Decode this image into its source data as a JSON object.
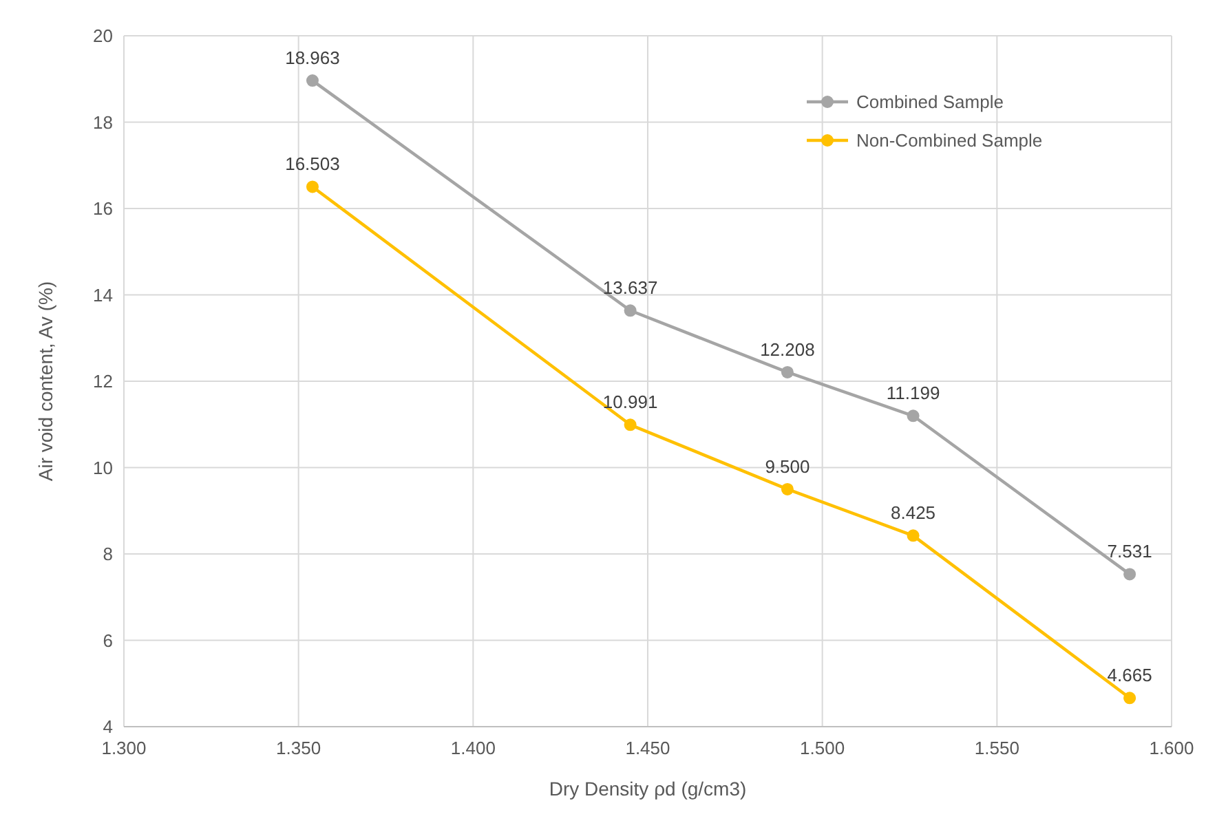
{
  "chart_data": {
    "type": "line",
    "xlabel": "Dry Density ρd (g/cm3)",
    "ylabel": "Air void content, Av (%)",
    "x": [
      1.354,
      1.445,
      1.49,
      1.526,
      1.588
    ],
    "series": [
      {
        "name": "Combined Sample",
        "color": "#a5a5a5",
        "values": [
          18.963,
          13.637,
          12.208,
          11.199,
          7.531
        ],
        "value_labels": [
          "18.963",
          "13.637",
          "12.208",
          "11.199",
          "7.531"
        ]
      },
      {
        "name": "Non-Combined Sample",
        "color": "#ffc000",
        "values": [
          16.503,
          10.991,
          9.5,
          8.425,
          4.665
        ],
        "value_labels": [
          "16.503",
          "10.991",
          "9.500",
          "8.425",
          "4.665"
        ]
      }
    ],
    "xlim": [
      1.3,
      1.6
    ],
    "xticks": [
      {
        "value": 1.3,
        "label": "1.300"
      },
      {
        "value": 1.35,
        "label": "1.350"
      },
      {
        "value": 1.4,
        "label": "1.400"
      },
      {
        "value": 1.45,
        "label": "1.450"
      },
      {
        "value": 1.5,
        "label": "1.500"
      },
      {
        "value": 1.55,
        "label": "1.550"
      },
      {
        "value": 1.6,
        "label": "1.600"
      }
    ],
    "ylim": [
      4,
      20
    ],
    "yticks": [
      4,
      6,
      8,
      10,
      12,
      14,
      16,
      18,
      20
    ],
    "grid": true,
    "legend": "top right",
    "marker": "circle",
    "line_style": "solid"
  }
}
